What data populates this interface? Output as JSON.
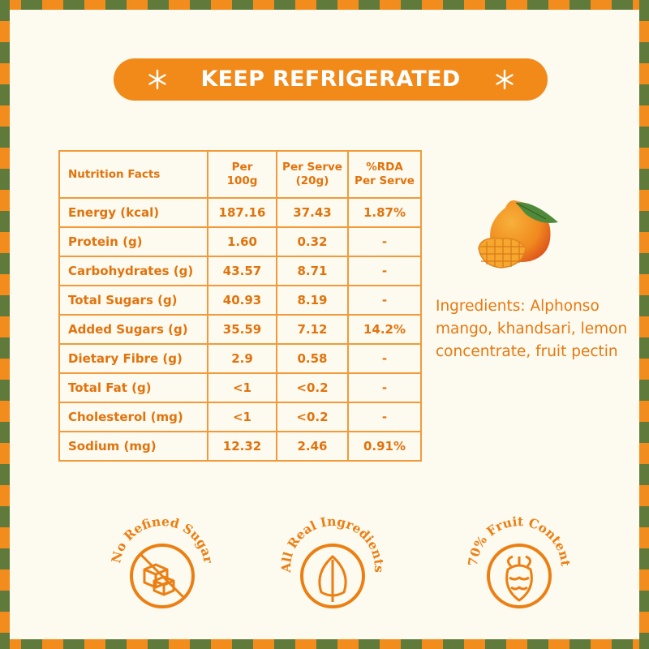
{
  "banner": {
    "title": "KEEP REFRIGERATED"
  },
  "table": {
    "header": [
      [
        "Nutrition Facts"
      ],
      [
        "Per",
        "100g"
      ],
      [
        "Per Serve",
        "(20g)"
      ],
      [
        "%RDA",
        "Per Serve"
      ]
    ],
    "rows": [
      [
        "Energy (kcal)",
        "187.16",
        "37.43",
        "1.87%"
      ],
      [
        "Protein (g)",
        "1.60",
        "0.32",
        "-"
      ],
      [
        "Carbohydrates (g)",
        "43.57",
        "8.71",
        "-"
      ],
      [
        "Total Sugars (g)",
        "40.93",
        "8.19",
        "-"
      ],
      [
        "Added Sugars (g)",
        "35.59",
        "7.12",
        "14.2%"
      ],
      [
        "Dietary Fibre (g)",
        "2.9",
        "0.58",
        "-"
      ],
      [
        "Total Fat (g)",
        "<1",
        "<0.2",
        "-"
      ],
      [
        "Cholesterol (mg)",
        "<1",
        "<0.2",
        "-"
      ],
      [
        "Sodium (mg)",
        "12.32",
        "2.46",
        "0.91%"
      ]
    ]
  },
  "ingredients": "Ingredients: Alphonso mango, khandsari, lemon concentrate, fruit pectin",
  "badges": [
    {
      "label": "No Refined Sugar"
    },
    {
      "label": "All Real Ingredients"
    },
    {
      "label": "70% Fruit Content"
    }
  ]
}
